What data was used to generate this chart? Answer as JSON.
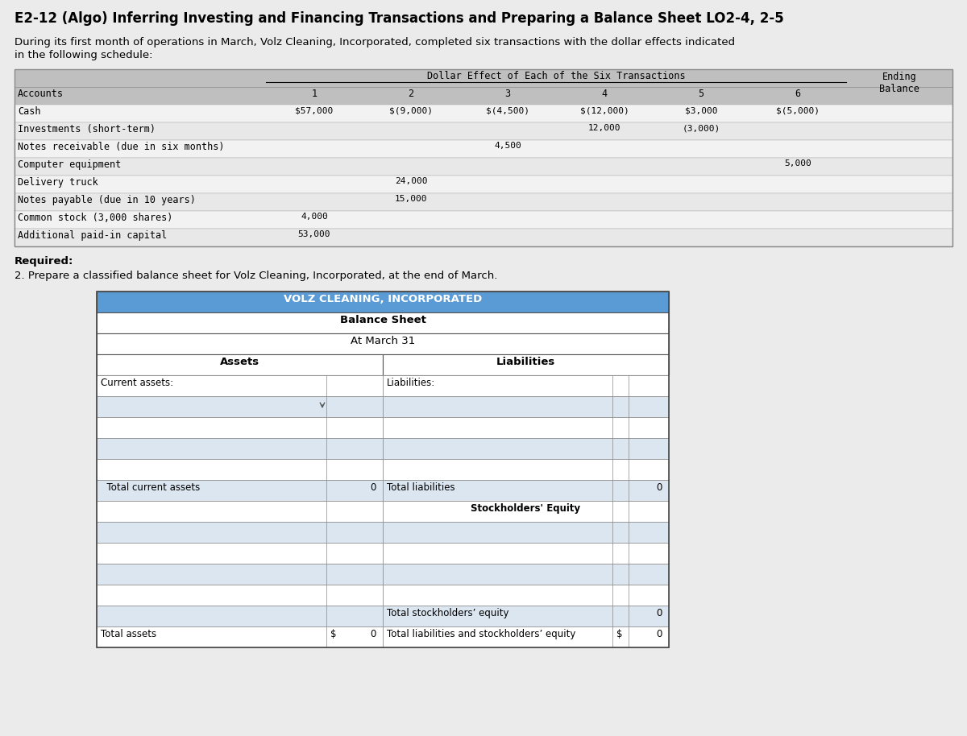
{
  "title": "E2-12 (Algo) Inferring Investing and Financing Transactions and Preparing a Balance Sheet LO2-4, 2-5",
  "intro_line1": "During its first month of operations in March, Volz Cleaning, Incorporated, completed six transactions with the dollar effects indicated",
  "intro_line2": "in the following schedule:",
  "table_header": "Dollar Effect of Each of the Six Transactions",
  "ending_balance_header": "Ending\nBalance",
  "col_headers": [
    "1",
    "2",
    "3",
    "4",
    "5",
    "6"
  ],
  "accounts": [
    "Accounts",
    "Cash",
    "Investments (short-term)",
    "Notes receivable (due in six months)",
    "Computer equipment",
    "Delivery truck",
    "Notes payable (due in 10 years)",
    "Common stock (3,000 shares)",
    "Additional paid-in capital"
  ],
  "row_data": [
    [
      "Cash",
      "$57,000",
      "$(9,000)",
      "$(4,500)",
      "$(12,000)",
      "$3,000",
      "$(5,000)",
      ""
    ],
    [
      "Investments (short-term)",
      "",
      "",
      "",
      "12,000",
      "(3,000)",
      "",
      ""
    ],
    [
      "Notes receivable (due in six months)",
      "",
      "",
      "4,500",
      "",
      "",
      "",
      ""
    ],
    [
      "Computer equipment",
      "",
      "",
      "",
      "",
      "",
      "5,000",
      ""
    ],
    [
      "Delivery truck",
      "",
      "24,000",
      "",
      "",
      "",
      "",
      ""
    ],
    [
      "Notes payable (due in 10 years)",
      "",
      "15,000",
      "",
      "",
      "",
      "",
      ""
    ],
    [
      "Common stock (3,000 shares)",
      "4,000",
      "",
      "",
      "",
      "",
      "",
      ""
    ],
    [
      "Additional paid-in capital",
      "53,000",
      "",
      "",
      "",
      "",
      "",
      ""
    ]
  ],
  "required_bold": "Required:",
  "required_line2": "2. Prepare a classified balance sheet for Volz Cleaning, Incorporated, at the end of March.",
  "bs_company": "VOLZ CLEANING, INCORPORATED",
  "bs_title": "Balance Sheet",
  "bs_date": "At March 31",
  "bs_header_bg": "#5b9bd5",
  "bs_white": "#ffffff",
  "bs_light_blue": "#dce6f1",
  "bs_mid_blue": "#c5d9f0",
  "table_header_bg": "#bfbfbf",
  "table_row_odd": "#f2f2f2",
  "table_row_even": "#e8e8e8",
  "background_color": "#ebebeb"
}
